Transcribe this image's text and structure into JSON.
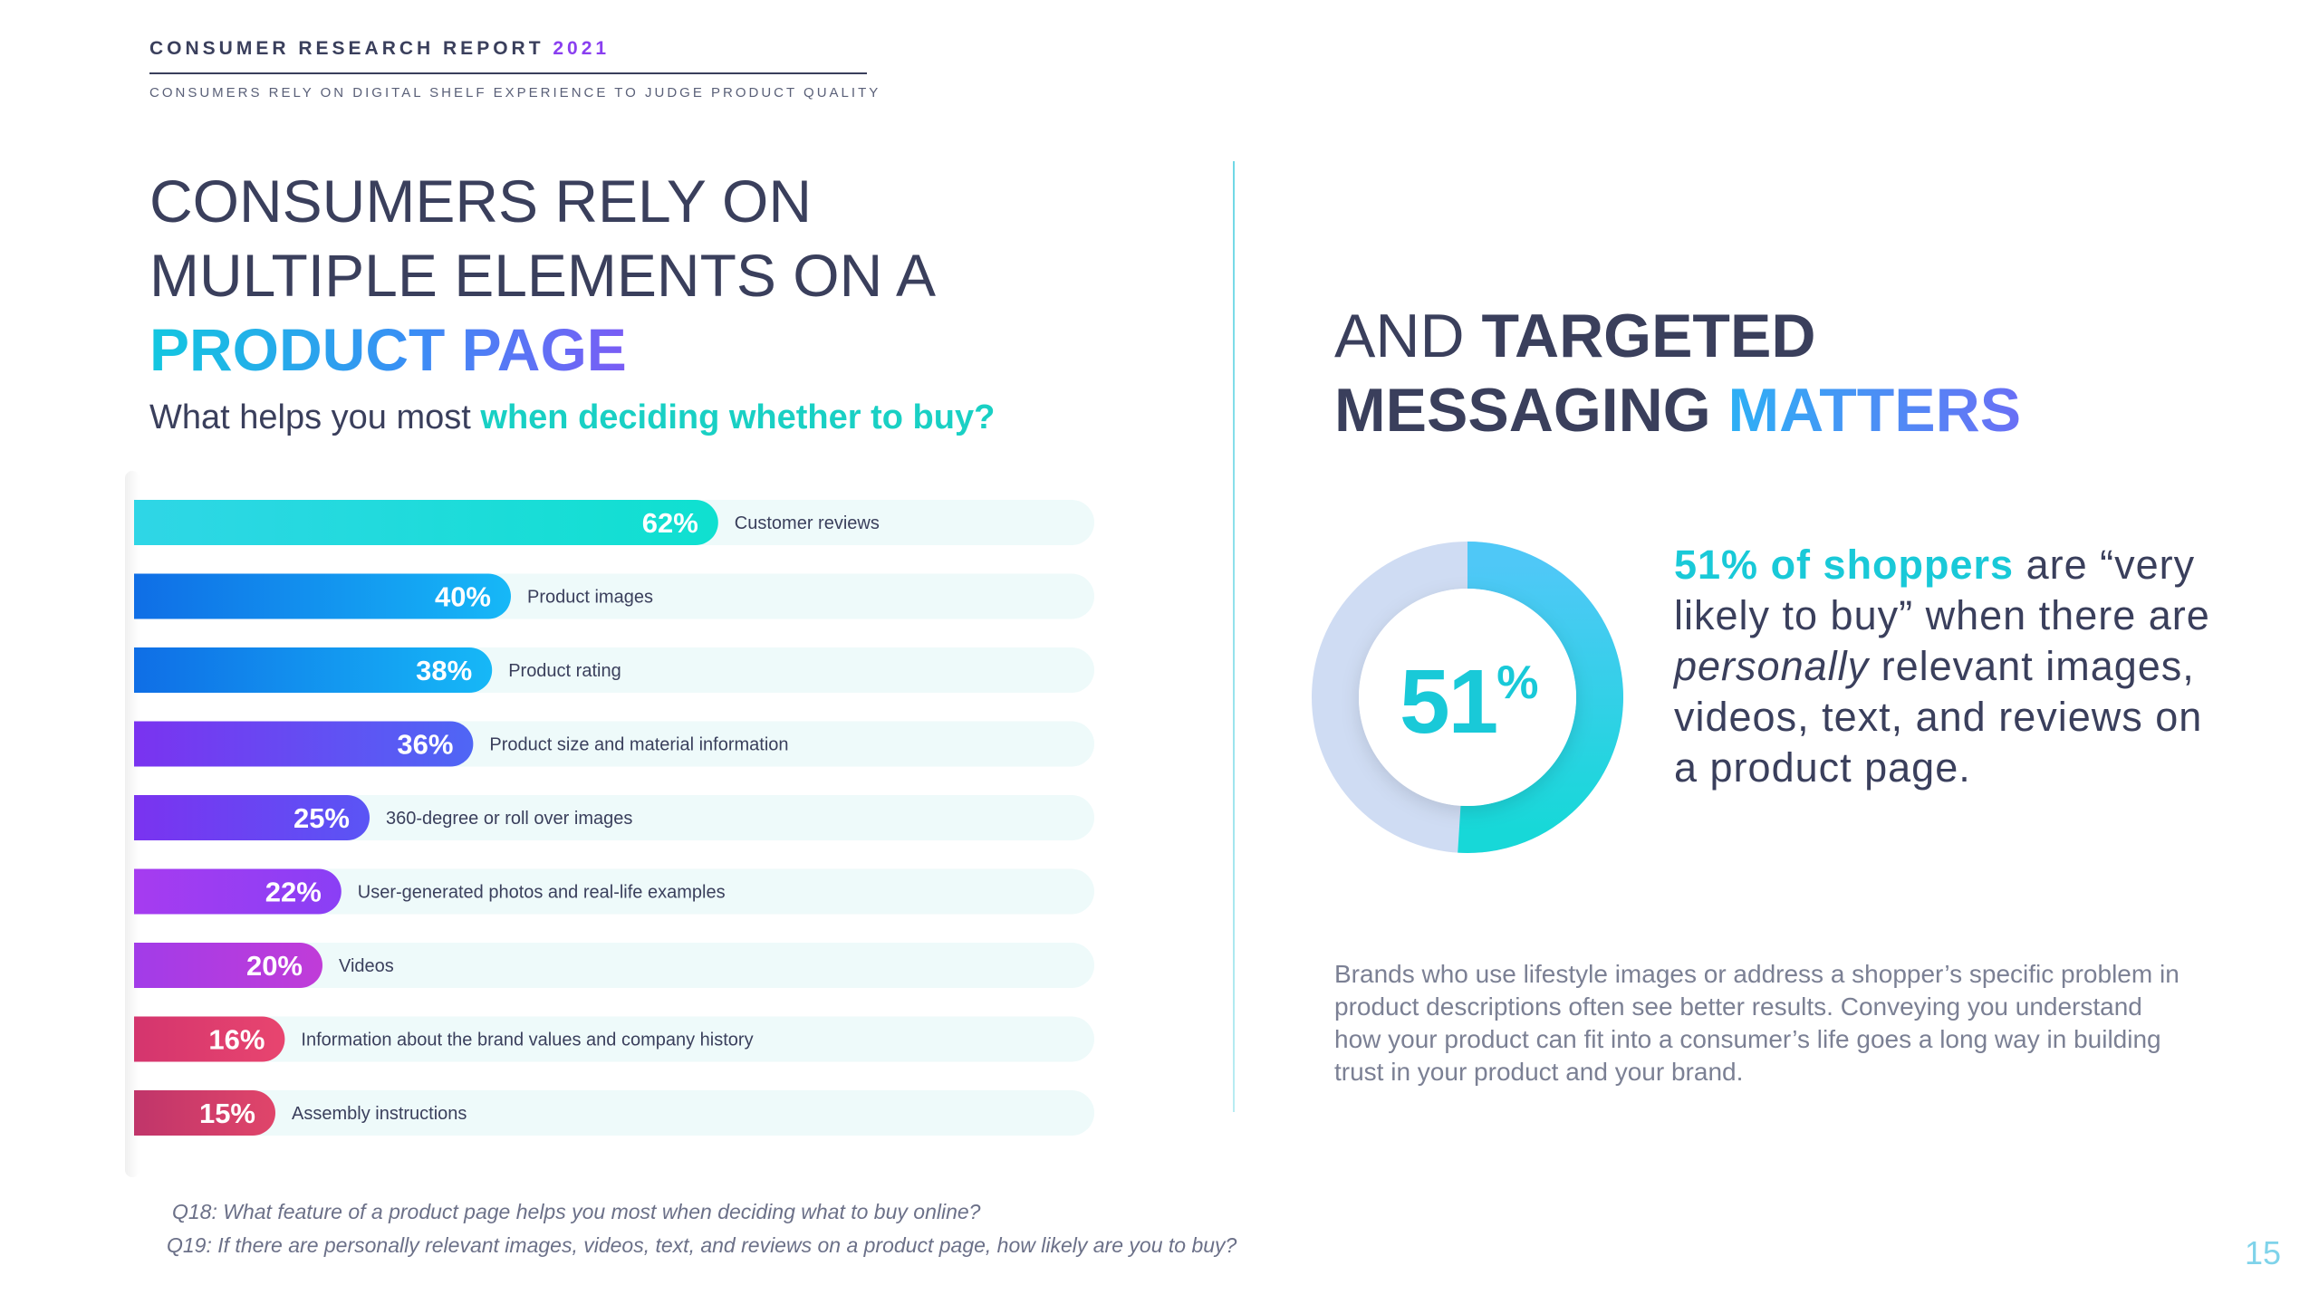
{
  "header": {
    "title": "CONSUMER RESEARCH REPORT",
    "year": "2021",
    "subtitle": "CONSUMERS RELY ON DIGITAL SHELF EXPERIENCE TO JUDGE PRODUCT QUALITY"
  },
  "left": {
    "headline_line1": "CONSUMERS RELY ON",
    "headline_line2": "MULTIPLE ELEMENTS ON A",
    "headline_line3": "PRODUCT PAGE",
    "question_prefix": "What helps you most ",
    "question_highlight": "when deciding whether to buy?"
  },
  "chart_data": {
    "type": "bar",
    "orientation": "horizontal",
    "value_format": "percent",
    "xlim": [
      0,
      100
    ],
    "categories": [
      "Customer reviews",
      "Product images",
      "Product rating",
      "Product size and material information",
      "360-degree or roll over images",
      "User-generated photos and real-life examples",
      "Videos",
      "Information about the brand values and company history",
      "Assembly instructions"
    ],
    "values": [
      62,
      40,
      38,
      36,
      25,
      22,
      20,
      16,
      15
    ],
    "labels": [
      "62%",
      "40%",
      "38%",
      "36%",
      "25%",
      "22%",
      "20%",
      "16%",
      "15%"
    ],
    "colors": [
      [
        "#2fd6e6",
        "#0fe0d0"
      ],
      [
        "#0f6ee6",
        "#16b8f7"
      ],
      [
        "#0f6ee6",
        "#16b8f7"
      ],
      [
        "#7a33f0",
        "#4f66f5"
      ],
      [
        "#7a33f0",
        "#5a55f5"
      ],
      [
        "#a63cf0",
        "#8a3ff5"
      ],
      [
        "#a23ce8",
        "#c03cd8"
      ],
      [
        "#d4356e",
        "#e8456f"
      ],
      [
        "#c0356a",
        "#e0456a"
      ]
    ],
    "track_color": "#eefafa"
  },
  "right": {
    "headline_line1_light": "AND ",
    "headline_line1_bold": "TARGETED",
    "headline_line2_bold": "MESSAGING ",
    "headline_line2_accent": "MATTERS",
    "donut_value": "51",
    "donut_pct": "%",
    "donut_fraction": 0.51,
    "stat_highlight": "51% of shoppers",
    "stat_rest_1": " are “very likely to buy” when there are ",
    "stat_italic": "personally",
    "stat_rest_2": " relevant images, videos, text, and reviews on a product page.",
    "body": "Brands who use lifestyle images or address a shopper’s specific problem in product descriptions often see better results. Conveying you understand how your product can fit into a consumer’s life goes a long way in building trust in your product and your brand."
  },
  "footnotes": {
    "q18": "Q18: What feature of a product page helps you most when deciding what to buy online?",
    "q19": "Q19: If there are personally relevant images, videos, text, and reviews on a product page, how likely are you to buy?"
  },
  "page_number": "15"
}
